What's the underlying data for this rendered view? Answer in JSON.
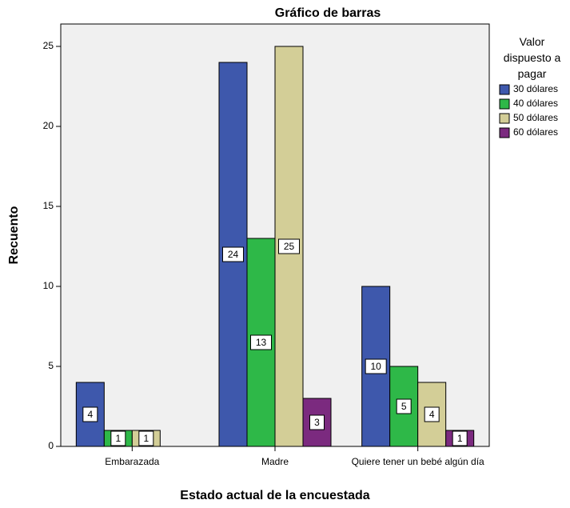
{
  "chart_data": {
    "type": "bar",
    "title": "Gráfico de barras",
    "x_label": "Estado actual de la encuestada",
    "y_label": "Recuento",
    "legend_title": "Valor dispuesto a pagar",
    "categories": [
      "Embarazada",
      "Madre",
      "Quiere tener un bebé algún día"
    ],
    "series": [
      {
        "name": "30 dólares",
        "color": "#3e58ac",
        "values": [
          4,
          24,
          10
        ]
      },
      {
        "name": "40 dólares",
        "color": "#2eb848",
        "values": [
          1,
          13,
          5
        ]
      },
      {
        "name": "50 dólares",
        "color": "#d3ce97",
        "values": [
          1,
          25,
          4
        ]
      },
      {
        "name": "60 dólares",
        "color": "#7b2a7f",
        "values": [
          0,
          3,
          1
        ]
      }
    ],
    "ylim": [
      0,
      26.4
    ],
    "yticks": [
      0,
      5,
      10,
      15,
      20,
      25
    ],
    "legend": "right"
  }
}
